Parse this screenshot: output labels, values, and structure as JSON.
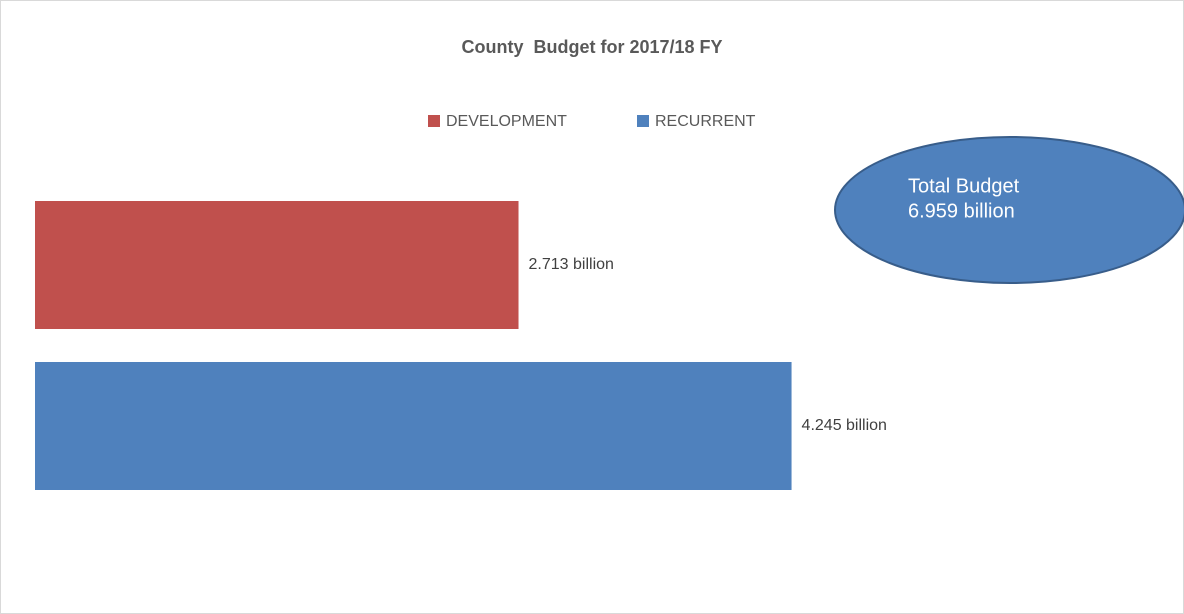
{
  "chart_data": {
    "type": "bar",
    "orientation": "horizontal",
    "title": "County  Budget for 2017/18 FY",
    "categories": [
      null
    ],
    "series": [
      {
        "name": "DEVELOPMENT",
        "color": "#c0504d",
        "values": [
          2.713
        ],
        "value_labels": [
          "2.713 billion"
        ]
      },
      {
        "name": "RECURRENT",
        "color": "#4f81bd",
        "values": [
          4.245
        ],
        "value_labels": [
          "4.245 billion"
        ]
      }
    ],
    "xlim": [
      0,
      4.5
    ],
    "legend": "top",
    "annotation": [
      "Total Budget",
      "6.959 billion"
    ]
  }
}
